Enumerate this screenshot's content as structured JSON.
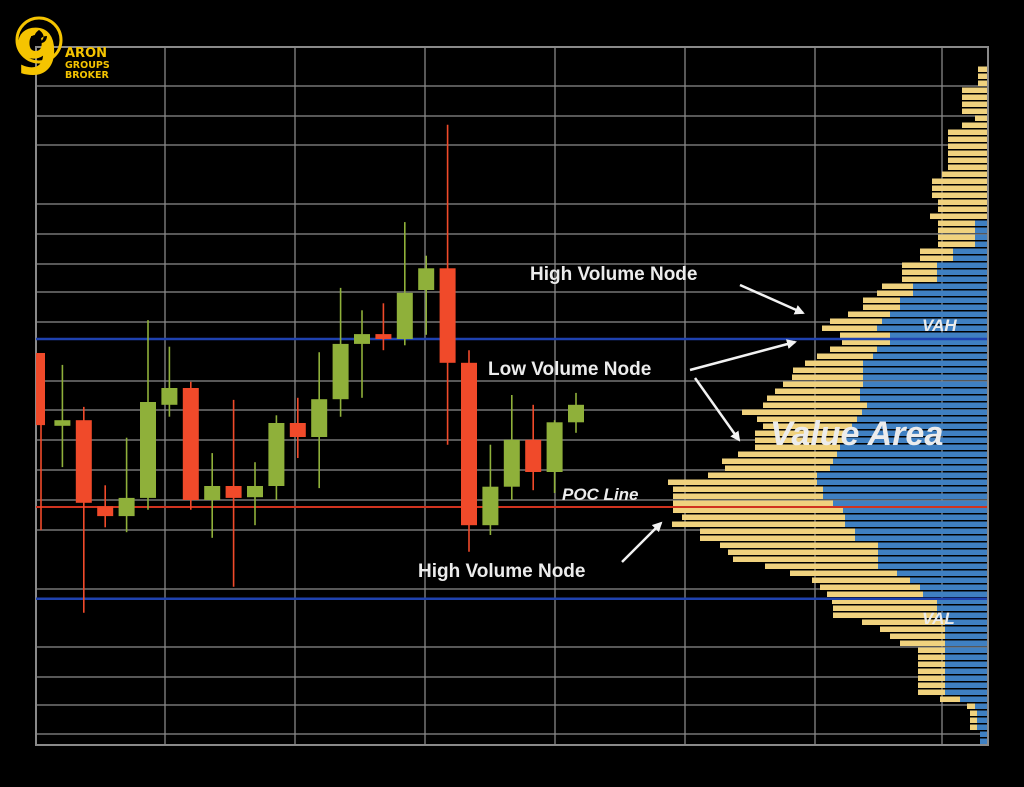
{
  "logo": {
    "text_lines": [
      "ARON",
      "GROUPS",
      "BROKER"
    ],
    "numeral": "9"
  },
  "chart_data": {
    "type": "candlestick+volume-profile",
    "title": "",
    "xlabel": "",
    "ylabel": "",
    "grid": true,
    "colors": {
      "background": "#000000",
      "grid": "#8a8a8a",
      "bullish": "#8fb03a",
      "bearish": "#f04a2a",
      "profile_volume": "#f0d27e",
      "profile_value_area": "#3f80c2",
      "value_area_lines": "#1f42b0",
      "poc_line": "#d0331f",
      "annotation_text": "#ececec"
    },
    "candles": [
      {
        "o": 56.0,
        "h": 56.0,
        "l": 30.7,
        "c": 45.7
      },
      {
        "o": 45.6,
        "h": 54.3,
        "l": 39.7,
        "c": 46.4
      },
      {
        "o": 46.4,
        "h": 48.3,
        "l": 18.9,
        "c": 34.6
      },
      {
        "o": 34.1,
        "h": 37.1,
        "l": 31.1,
        "c": 32.7
      },
      {
        "o": 32.7,
        "h": 43.9,
        "l": 30.4,
        "c": 35.3
      },
      {
        "o": 35.3,
        "h": 60.7,
        "l": 33.6,
        "c": 49.0
      },
      {
        "o": 48.6,
        "h": 56.9,
        "l": 46.9,
        "c": 51.0
      },
      {
        "o": 51.0,
        "h": 51.9,
        "l": 33.6,
        "c": 35.0
      },
      {
        "o": 35.0,
        "h": 41.7,
        "l": 29.6,
        "c": 37.0
      },
      {
        "o": 37.0,
        "h": 49.3,
        "l": 22.6,
        "c": 35.3
      },
      {
        "o": 35.4,
        "h": 40.4,
        "l": 31.4,
        "c": 37.0
      },
      {
        "o": 37.0,
        "h": 47.1,
        "l": 35.0,
        "c": 46.0
      },
      {
        "o": 46.0,
        "h": 49.6,
        "l": 41.0,
        "c": 44.0
      },
      {
        "o": 44.0,
        "h": 56.1,
        "l": 36.7,
        "c": 49.4
      },
      {
        "o": 49.4,
        "h": 65.3,
        "l": 46.9,
        "c": 57.3
      },
      {
        "o": 57.3,
        "h": 62.1,
        "l": 49.6,
        "c": 58.7
      },
      {
        "o": 58.7,
        "h": 63.1,
        "l": 56.4,
        "c": 58.0
      },
      {
        "o": 58.0,
        "h": 74.7,
        "l": 57.1,
        "c": 64.6
      },
      {
        "o": 65.0,
        "h": 69.9,
        "l": 58.6,
        "c": 68.1
      },
      {
        "o": 68.1,
        "h": 88.6,
        "l": 42.9,
        "c": 54.6
      },
      {
        "o": 54.6,
        "h": 56.4,
        "l": 27.6,
        "c": 31.4
      },
      {
        "o": 31.4,
        "h": 42.9,
        "l": 30.0,
        "c": 36.9
      },
      {
        "o": 36.9,
        "h": 50.0,
        "l": 35.0,
        "c": 43.6
      },
      {
        "o": 43.6,
        "h": 48.6,
        "l": 36.4,
        "c": 39.0
      },
      {
        "o": 39.0,
        "h": 46.4,
        "l": 36.0,
        "c": 46.1
      },
      {
        "o": 46.1,
        "h": 50.3,
        "l": 44.6,
        "c": 48.6
      }
    ],
    "volume_profile": {
      "top_price": 97,
      "bin_size": 1,
      "total_volume": [
        9,
        9,
        9,
        25,
        25,
        25,
        25,
        12,
        25,
        39,
        39,
        39,
        39,
        39,
        39,
        45,
        55,
        55,
        55,
        49,
        49,
        57,
        49,
        49,
        49,
        49,
        67,
        67,
        85,
        85,
        85,
        105,
        110,
        124,
        124,
        139,
        157,
        165,
        147,
        145,
        157,
        170,
        182,
        194,
        195,
        204,
        212,
        220,
        224,
        245,
        230,
        224,
        232,
        232,
        232,
        249,
        265,
        262,
        279,
        319,
        314,
        314,
        314,
        314,
        305,
        315,
        287,
        287,
        267,
        259,
        254,
        222,
        197,
        175,
        167,
        160,
        155,
        154,
        154,
        125,
        107,
        97,
        87,
        69,
        69,
        69,
        69,
        69,
        69,
        69,
        47,
        20,
        17,
        17,
        17,
        7,
        7
      ],
      "blue_volume": [
        0,
        0,
        0,
        0,
        0,
        0,
        0,
        0,
        0,
        0,
        0,
        0,
        0,
        0,
        0,
        0,
        0,
        0,
        0,
        0,
        0,
        0,
        12,
        12,
        12,
        12,
        34,
        34,
        50,
        50,
        50,
        74,
        74,
        87,
        87,
        97,
        105,
        110,
        97,
        97,
        110,
        114,
        124,
        124,
        124,
        124,
        127,
        127,
        120,
        125,
        130,
        135,
        140,
        143,
        147,
        150,
        154,
        157,
        170,
        170,
        164,
        164,
        154,
        144,
        142,
        142,
        132,
        132,
        109,
        109,
        109,
        109,
        90,
        77,
        67,
        64,
        50,
        50,
        50,
        42,
        42,
        42,
        42,
        42,
        42,
        42,
        42,
        42,
        42,
        42,
        27,
        12,
        10,
        10,
        10,
        7,
        7
      ]
    },
    "levels": {
      "VAH": 58.0,
      "POC": 34.0,
      "VAL": 20.9
    },
    "annotations": {
      "high_volume_node_top": "High Volume Node",
      "low_volume_node": "Low Volume Node",
      "value_area": "Value Area",
      "poc_line": "POC Line",
      "high_volume_node_bottom": "High Volume Node",
      "vah": "VAH",
      "val": "VAL"
    }
  }
}
